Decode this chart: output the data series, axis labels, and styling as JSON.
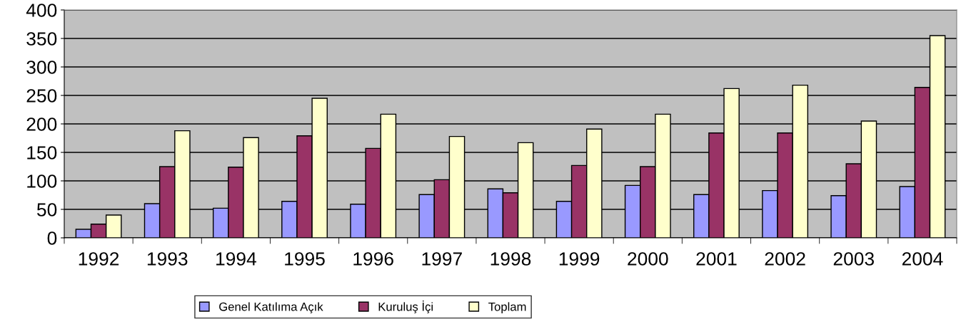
{
  "chart_data": {
    "type": "bar",
    "categories": [
      "1992",
      "1993",
      "1994",
      "1995",
      "1996",
      "1997",
      "1998",
      "1999",
      "2000",
      "2001",
      "2002",
      "2003",
      "2004"
    ],
    "series": [
      {
        "name": "Genel Katılıma Açık",
        "color": "#9999ff",
        "values": [
          15,
          60,
          52,
          64,
          59,
          76,
          86,
          64,
          92,
          76,
          83,
          74,
          90
        ]
      },
      {
        "name": "Kuruluş İçi",
        "color": "#993366",
        "values": [
          24,
          125,
          124,
          179,
          157,
          102,
          79,
          127,
          125,
          184,
          184,
          130,
          264
        ]
      },
      {
        "name": "Toplam",
        "color": "#ffffcc",
        "values": [
          40,
          188,
          176,
          245,
          217,
          178,
          167,
          191,
          217,
          262,
          268,
          205,
          355
        ]
      }
    ],
    "ylim": [
      0,
      400
    ],
    "yticks": [
      0,
      50,
      100,
      150,
      200,
      250,
      300,
      350,
      400
    ],
    "grid": "y",
    "legend": "bottom"
  }
}
